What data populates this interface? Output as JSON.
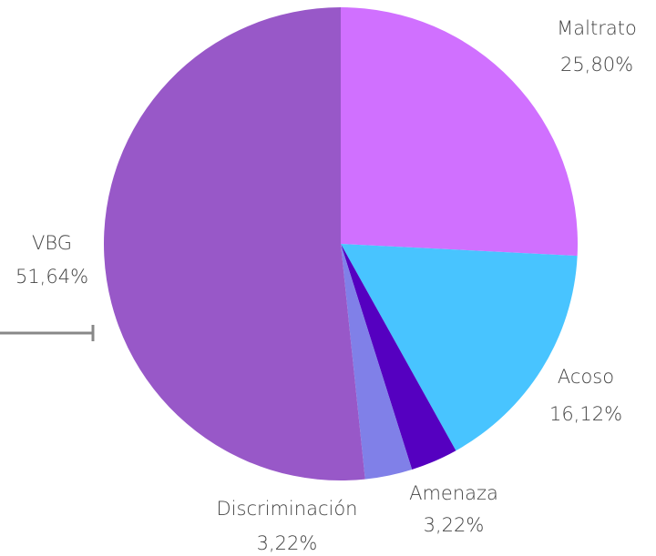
{
  "chart_data": {
    "type": "pie",
    "categories": [
      "Maltrato",
      "Acoso",
      "Amenaza",
      "Discriminación",
      "VBG"
    ],
    "values": [
      25.8,
      16.12,
      3.22,
      3.22,
      51.64
    ],
    "value_labels": [
      "25,80%",
      "16,12%",
      "3,22%",
      "3,22%",
      "51,64%"
    ],
    "colors": [
      "#d070ff",
      "#48c4ff",
      "#5500c0",
      "#8080e8",
      "#9858c8"
    ]
  }
}
